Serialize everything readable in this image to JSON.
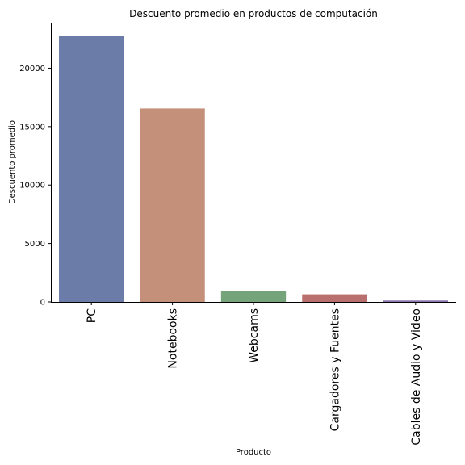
{
  "chart_data": {
    "type": "bar",
    "title": "Descuento promedio en productos de computación",
    "xlabel": "Producto",
    "ylabel": "Descuento promedio",
    "categories": [
      "PC",
      "Notebooks",
      "Webcams",
      "Cargadores y Fuentes",
      "Cables de Audio y Video"
    ],
    "values": [
      22750,
      16550,
      900,
      650,
      120
    ],
    "colors": [
      "#6c7ca8",
      "#c4907a",
      "#76a47a",
      "#b86f6d",
      "#8a76ad"
    ],
    "ylim": [
      0,
      23900
    ],
    "yticks": [
      0,
      5000,
      10000,
      15000,
      20000
    ],
    "grid": false,
    "legend": "none"
  }
}
